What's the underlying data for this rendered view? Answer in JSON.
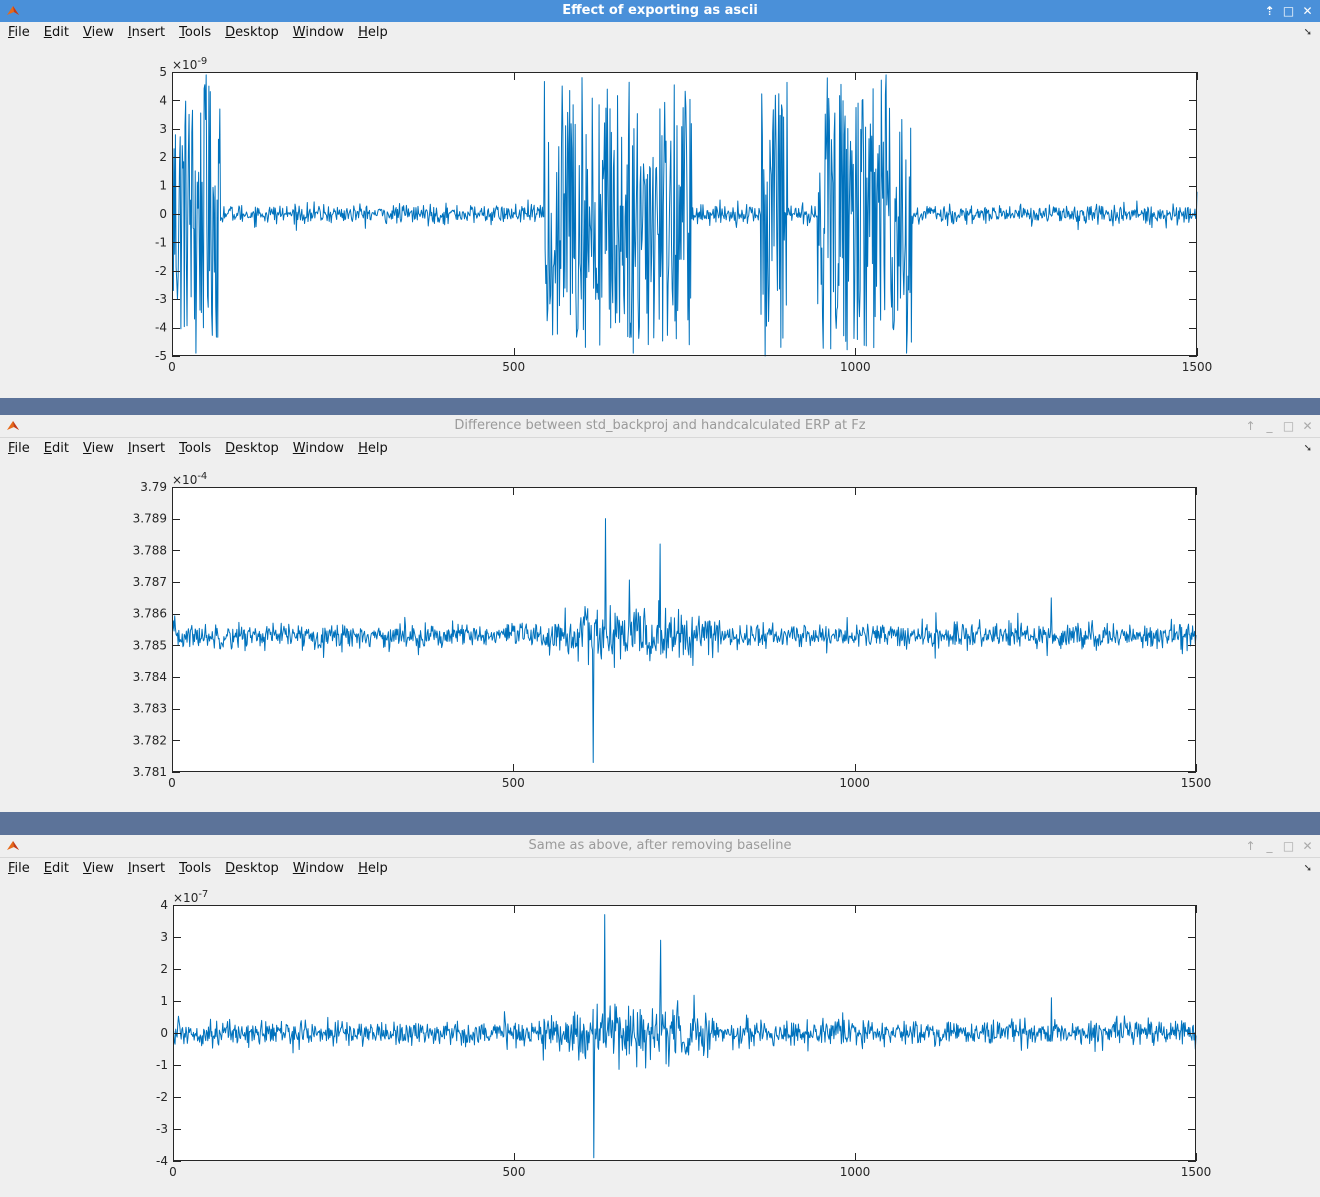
{
  "menu_items": [
    "File",
    "Edit",
    "View",
    "Insert",
    "Tools",
    "Desktop",
    "Window",
    "Help"
  ],
  "colors": {
    "line": "#0072bd",
    "active_title": "#4a90d9",
    "desktop": "#5c7399"
  },
  "windows": [
    {
      "title": "Effect of exporting as ascii",
      "active": true,
      "exponent_base": "×10",
      "exponent_power": "-9",
      "chart_data": {
        "type": "line",
        "xlim": [
          0,
          1500
        ],
        "ylim": [
          -5,
          5
        ],
        "xticks": [
          0,
          500,
          1000,
          1500
        ],
        "yticks": [
          -5,
          -4,
          -3,
          -2,
          -1,
          0,
          1,
          2,
          3,
          4,
          5
        ],
        "xtick_labels": [
          "0",
          "500",
          "1000",
          "1500"
        ],
        "ytick_labels": [
          "-5",
          "-4",
          "-3",
          "-2",
          "-1",
          "0",
          "1",
          "2",
          "3",
          "4",
          "5"
        ],
        "y_exponent": -9,
        "series": [
          {
            "n_points": 1500,
            "x_range": [
              1,
              1500
            ],
            "baseline": 0,
            "noise_amplitude": 0.3,
            "bursts": [
              {
                "x": [
                  0,
                  70
                ],
                "amplitude": 4.6
              },
              {
                "x": [
                  545,
                  760
                ],
                "amplitude": 4.7
              },
              {
                "x": [
                  862,
                  900
                ],
                "amplitude": 4.8
              },
              {
                "x": [
                  945,
                  1082
                ],
                "amplitude": 4.8
              }
            ],
            "extremes": [
              {
                "x": 35,
                "y": -4.9
              },
              {
                "x": 50,
                "y": 4.9
              },
              {
                "x": 600,
                "y": 4.8
              },
              {
                "x": 675,
                "y": -4.9
              },
              {
                "x": 868,
                "y": -5.0
              },
              {
                "x": 1045,
                "y": 4.9
              },
              {
                "x": 1075,
                "y": -4.9
              }
            ]
          }
        ]
      }
    },
    {
      "title": "Difference between std_backproj and handcalculated ERP at Fz",
      "active": false,
      "exponent_base": "×10",
      "exponent_power": "-4",
      "chart_data": {
        "type": "line",
        "xlim": [
          0,
          1500
        ],
        "ylim": [
          3.781,
          3.79
        ],
        "xticks": [
          0,
          500,
          1000,
          1500
        ],
        "yticks": [
          3.781,
          3.782,
          3.783,
          3.784,
          3.785,
          3.786,
          3.787,
          3.788,
          3.789,
          3.79
        ],
        "xtick_labels": [
          "0",
          "500",
          "1000",
          "1500"
        ],
        "ytick_labels": [
          "3.781",
          "3.782",
          "3.783",
          "3.784",
          "3.785",
          "3.786",
          "3.787",
          "3.788",
          "3.789",
          "3.79"
        ],
        "y_exponent": -4,
        "series": [
          {
            "n_points": 1500,
            "x_range": [
              1,
              1500
            ],
            "baseline": 3.7853,
            "noise_amplitude": 0.00035,
            "high_variance_region": [
              540,
              800
            ],
            "extremes": [
              {
                "x": 635,
                "y": 3.789
              },
              {
                "x": 617,
                "y": 3.7813
              },
              {
                "x": 715,
                "y": 3.7882
              },
              {
                "x": 1288,
                "y": 3.7865
              }
            ]
          }
        ]
      }
    },
    {
      "title": "Same as above, after removing baseline",
      "active": false,
      "exponent_base": "×10",
      "exponent_power": "-7",
      "chart_data": {
        "type": "line",
        "xlim": [
          0,
          1500
        ],
        "ylim": [
          -4,
          4
        ],
        "xticks": [
          0,
          500,
          1000,
          1500
        ],
        "yticks": [
          -4,
          -3,
          -2,
          -1,
          0,
          1,
          2,
          3,
          4
        ],
        "xtick_labels": [
          "0",
          "500",
          "1000",
          "1500"
        ],
        "ytick_labels": [
          "-4",
          "-3",
          "-2",
          "-1",
          "0",
          "1",
          "2",
          "3",
          "4"
        ],
        "y_exponent": -7,
        "series": [
          {
            "n_points": 1500,
            "x_range": [
              1,
              1500
            ],
            "baseline": 0,
            "noise_amplitude": 0.35,
            "high_variance_region": [
              540,
              800
            ],
            "extremes": [
              {
                "x": 633,
                "y": 3.7
              },
              {
                "x": 617,
                "y": -3.9
              },
              {
                "x": 715,
                "y": 2.9
              },
              {
                "x": 1288,
                "y": 1.1
              }
            ]
          }
        ]
      }
    }
  ]
}
